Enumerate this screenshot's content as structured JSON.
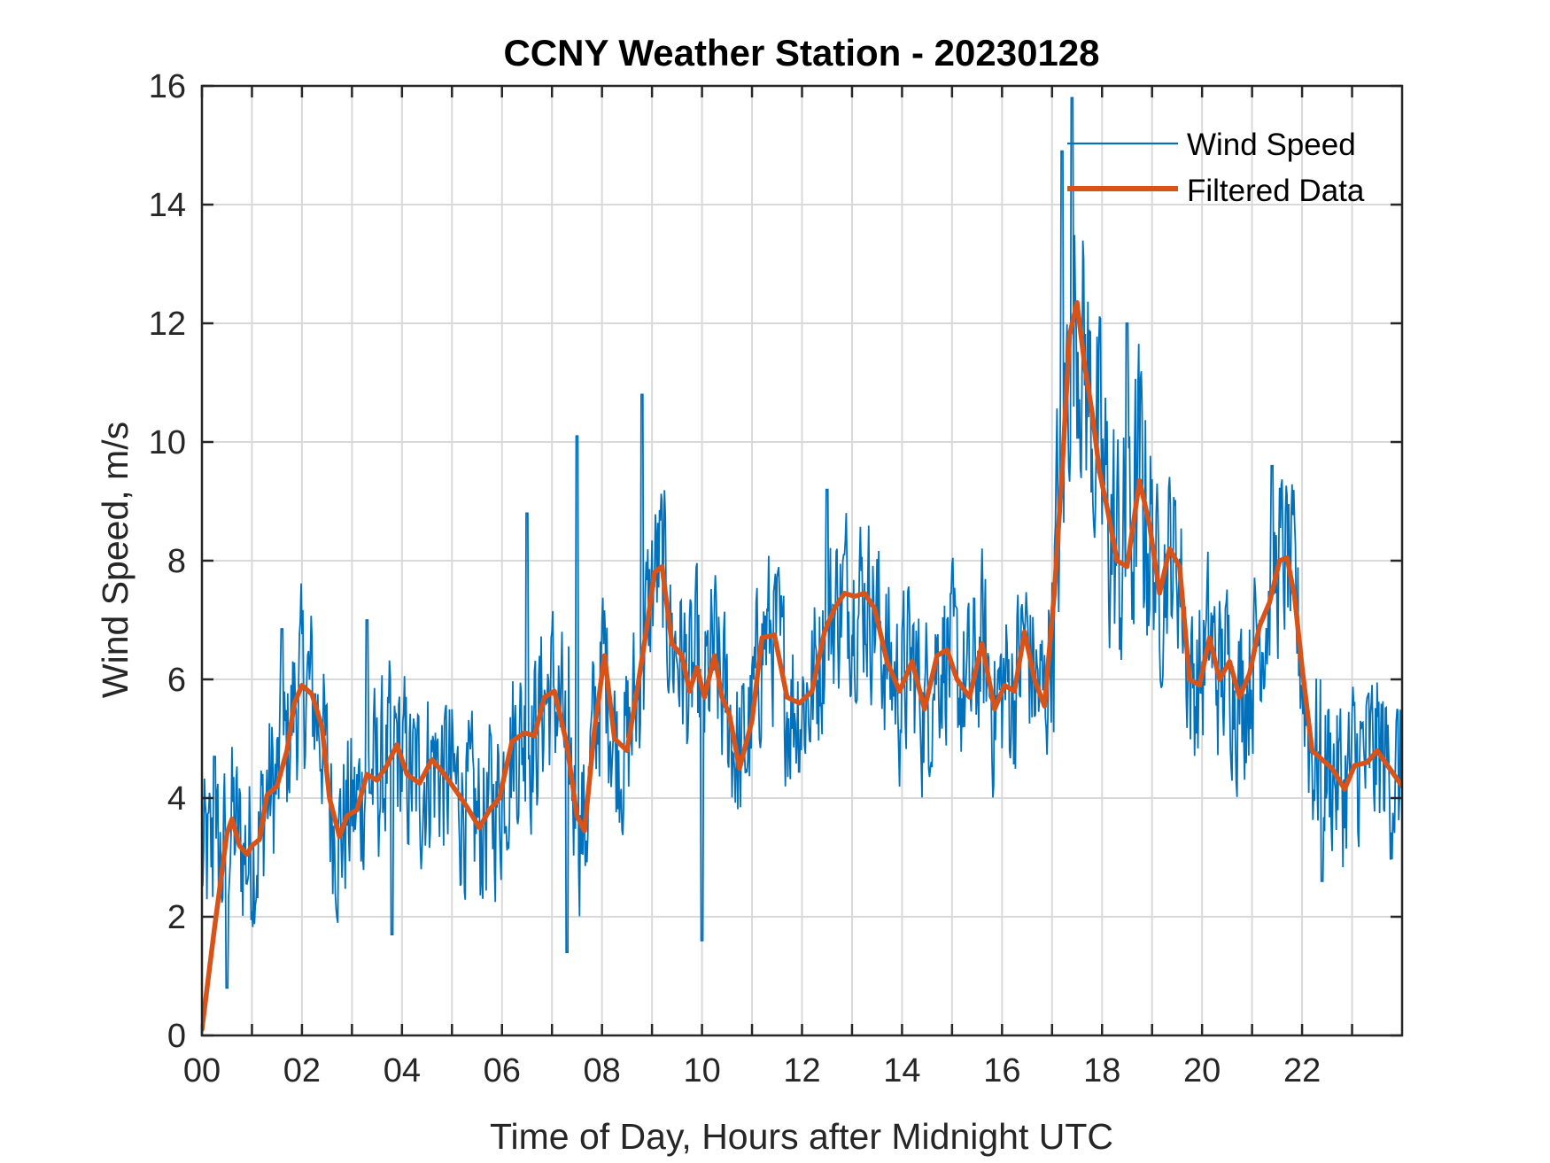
{
  "chart_data": {
    "type": "line",
    "title": "CCNY Weather Station - 20230128",
    "xlabel": "Time of Day, Hours after Midnight UTC",
    "ylabel": "Wind Speed, m/s",
    "xlim": [
      0,
      24
    ],
    "ylim": [
      0,
      16
    ],
    "xticks": [
      0,
      1,
      2,
      3,
      4,
      5,
      6,
      7,
      8,
      9,
      10,
      11,
      12,
      13,
      14,
      15,
      16,
      17,
      18,
      19,
      20,
      21,
      22,
      23
    ],
    "xtick_labels": [
      "00",
      "02",
      "04",
      "06",
      "08",
      "10",
      "12",
      "14",
      "16",
      "18",
      "20",
      "22"
    ],
    "xtick_label_values": [
      0,
      2,
      4,
      6,
      8,
      10,
      12,
      14,
      16,
      18,
      20,
      22
    ],
    "yticks": [
      0,
      2,
      4,
      6,
      8,
      10,
      12,
      14,
      16
    ],
    "ytick_labels": [
      "0",
      "2",
      "4",
      "6",
      "8",
      "10",
      "12",
      "14",
      "16"
    ],
    "grid": true,
    "legend": {
      "placement": "top-right",
      "boxed": false,
      "entries": [
        "Wind Speed",
        "Filtered Data"
      ]
    },
    "colors": {
      "wind_speed": "#0072BD",
      "filtered": "#D95319",
      "grid": "#d9d9d9",
      "axes": "#262626"
    },
    "series": [
      {
        "name": "Filtered Data",
        "x": [
          0,
          0.25,
          0.5,
          0.6,
          0.75,
          0.9,
          1.0,
          1.15,
          1.3,
          1.5,
          1.7,
          1.85,
          2.0,
          2.2,
          2.4,
          2.55,
          2.75,
          2.9,
          3.1,
          3.3,
          3.5,
          3.7,
          3.9,
          4.1,
          4.35,
          4.6,
          4.85,
          5.1,
          5.3,
          5.55,
          5.75,
          5.95,
          6.2,
          6.45,
          6.65,
          6.85,
          7.05,
          7.3,
          7.5,
          7.65,
          7.85,
          8.05,
          8.25,
          8.5,
          8.7,
          8.9,
          9.05,
          9.2,
          9.4,
          9.6,
          9.75,
          9.9,
          10.05,
          10.25,
          10.4,
          10.55,
          10.75,
          11.0,
          11.2,
          11.45,
          11.7,
          11.95,
          12.2,
          12.45,
          12.65,
          12.85,
          13.05,
          13.25,
          13.45,
          13.7,
          13.95,
          14.2,
          14.45,
          14.7,
          14.9,
          15.1,
          15.35,
          15.6,
          15.85,
          16.05,
          16.25,
          16.45,
          16.65,
          16.85,
          17.05,
          17.2,
          17.35,
          17.5,
          17.65,
          17.8,
          17.95,
          18.1,
          18.3,
          18.5,
          18.75,
          18.95,
          19.15,
          19.35,
          19.55,
          19.75,
          19.95,
          20.15,
          20.35,
          20.55,
          20.75,
          20.95,
          21.15,
          21.35,
          21.55,
          21.7,
          21.85,
          22.0,
          22.2,
          22.4,
          22.6,
          22.85,
          23.05,
          23.3,
          23.5,
          23.75,
          24.0
        ],
        "y": [
          0.1,
          1.8,
          3.4,
          3.65,
          3.2,
          3.05,
          3.2,
          3.3,
          4.05,
          4.2,
          4.8,
          5.6,
          5.9,
          5.75,
          5.2,
          4.0,
          3.35,
          3.7,
          3.8,
          4.4,
          4.3,
          4.55,
          4.9,
          4.4,
          4.25,
          4.65,
          4.4,
          4.1,
          3.85,
          3.5,
          3.8,
          4.0,
          4.95,
          5.1,
          5.05,
          5.7,
          5.8,
          4.9,
          3.7,
          3.45,
          5.15,
          6.4,
          5.0,
          4.8,
          5.8,
          6.9,
          7.8,
          7.9,
          6.6,
          6.4,
          5.8,
          6.2,
          5.7,
          6.4,
          5.7,
          5.4,
          4.5,
          5.3,
          6.7,
          6.75,
          5.7,
          5.6,
          5.8,
          6.8,
          7.2,
          7.45,
          7.4,
          7.45,
          7.2,
          6.3,
          5.8,
          6.3,
          5.5,
          6.4,
          6.5,
          6.0,
          5.7,
          6.6,
          5.5,
          5.9,
          5.8,
          6.8,
          6.0,
          5.55,
          7.5,
          9.5,
          11.8,
          12.35,
          11.3,
          10.5,
          9.5,
          8.9,
          8.0,
          7.9,
          9.35,
          8.6,
          7.45,
          8.2,
          7.9,
          6.0,
          5.9,
          6.7,
          6.0,
          6.3,
          5.7,
          6.1,
          6.9,
          7.3,
          8.0,
          8.05,
          7.4,
          6.2,
          4.8,
          4.65,
          4.5,
          4.15,
          4.55,
          4.6,
          4.8,
          4.5,
          4.2
        ]
      },
      {
        "name": "Wind Speed",
        "description": "raw 1-minute samples, noisy around filtered curve",
        "notable_peaks": [
          {
            "x": 0.25,
            "y": 4.7
          },
          {
            "x": 1.6,
            "y": 6.85
          },
          {
            "x": 3.3,
            "y": 7.0
          },
          {
            "x": 6.5,
            "y": 8.8
          },
          {
            "x": 7.5,
            "y": 10.1
          },
          {
            "x": 8.8,
            "y": 10.8
          },
          {
            "x": 12.5,
            "y": 9.2
          },
          {
            "x": 17.4,
            "y": 15.8
          },
          {
            "x": 17.2,
            "y": 14.9
          },
          {
            "x": 18.5,
            "y": 12.0
          },
          {
            "x": 21.4,
            "y": 9.6
          }
        ],
        "notable_troughs": [
          {
            "x": 0.5,
            "y": 0.8
          },
          {
            "x": 7.3,
            "y": 1.4
          },
          {
            "x": 10.0,
            "y": 1.6
          },
          {
            "x": 3.8,
            "y": 1.7
          },
          {
            "x": 22.4,
            "y": 2.6
          }
        ],
        "noise_amplitude": 1.6
      }
    ]
  }
}
